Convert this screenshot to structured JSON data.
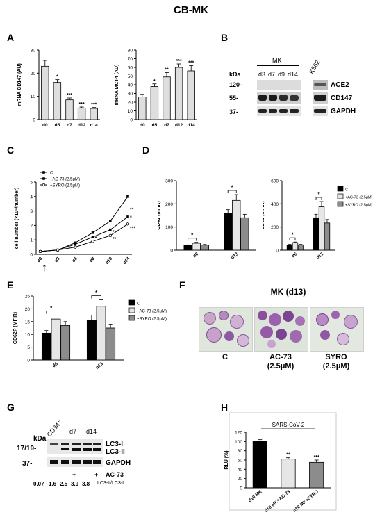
{
  "figure": {
    "title": "CB-MK"
  },
  "panels": {
    "A": "A",
    "B": "B",
    "C": "C",
    "D": "D",
    "E": "E",
    "F": "F",
    "G": "G",
    "H": "H"
  },
  "chart_data": [
    {
      "id": "A1",
      "type": "bar",
      "ylabel": "mRNA CD147 (AU)",
      "categories": [
        "d0",
        "d5",
        "d7",
        "d12",
        "d14"
      ],
      "values": [
        23,
        16,
        8.5,
        5,
        4.8
      ],
      "errors": [
        2.5,
        1.2,
        0.8,
        0.4,
        0.4
      ],
      "annotations": [
        "",
        "*",
        "***",
        "***",
        "***"
      ],
      "ylim": [
        0,
        30
      ],
      "yticks": [
        0,
        10,
        20,
        30
      ]
    },
    {
      "id": "A2",
      "type": "bar",
      "ylabel": "mRNA MCT4 (AU)",
      "categories": [
        "d0",
        "d5",
        "d7",
        "d12",
        "d14"
      ],
      "values": [
        26,
        38,
        49,
        60,
        56
      ],
      "errors": [
        3,
        3,
        5,
        4,
        6
      ],
      "annotations": [
        "",
        "*",
        "**",
        "***",
        "***"
      ],
      "ylim": [
        0,
        80
      ],
      "yticks": [
        0,
        10,
        20,
        30,
        40,
        50,
        60,
        70,
        80
      ]
    },
    {
      "id": "C",
      "type": "line",
      "ylabel": "cell number (×10⁶/number)",
      "x": [
        "d0",
        "d3",
        "d6",
        "d8",
        "d10",
        "d14"
      ],
      "ylim": [
        0,
        5
      ],
      "yticks": [
        0,
        1,
        2,
        3,
        4,
        5
      ],
      "series": [
        {
          "name": "C",
          "values": [
            0.2,
            0.3,
            0.8,
            1.5,
            2.3,
            4.0
          ]
        },
        {
          "name": "+AC-73 (2.5μM)",
          "values": [
            0.2,
            0.3,
            0.7,
            1.2,
            1.7,
            2.6
          ]
        },
        {
          "name": "+SYRO (2.5μM)",
          "values": [
            0.2,
            0.3,
            0.5,
            0.9,
            1.3,
            2.1
          ]
        }
      ],
      "annotations": [
        {
          "x": "d8",
          "text": "*"
        },
        {
          "x": "d10",
          "text": "*"
        },
        {
          "x": "d10",
          "text": "**"
        },
        {
          "x": "d14",
          "text": "**"
        },
        {
          "x": "d14",
          "text": "*"
        },
        {
          "x": "d14",
          "text": "***"
        }
      ]
    },
    {
      "id": "D1",
      "type": "bar",
      "ylabel": "CD41 (MFIR)",
      "categories": [
        "d6",
        "d13"
      ],
      "series": [
        {
          "name": "C",
          "values": [
            20,
            160
          ],
          "errors": [
            3,
            15
          ]
        },
        {
          "name": "+AC-73 (2.5μM)",
          "values": [
            30,
            215
          ],
          "errors": [
            4,
            25
          ]
        },
        {
          "name": "+SYRO (2.5μM)",
          "values": [
            22,
            140
          ],
          "errors": [
            3,
            15
          ]
        }
      ],
      "annotations": [
        "*",
        "*"
      ],
      "ylim": [
        0,
        300
      ],
      "yticks": [
        0,
        100,
        200,
        300
      ]
    },
    {
      "id": "D2",
      "type": "bar",
      "ylabel": "CD61 (MFIR)",
      "categories": [
        "d6",
        "d13"
      ],
      "series": [
        {
          "name": "C",
          "values": [
            45,
            280
          ],
          "errors": [
            5,
            30
          ]
        },
        {
          "name": "+AC-73 (2.5μM)",
          "values": [
            65,
            375
          ],
          "errors": [
            6,
            45
          ]
        },
        {
          "name": "+SYRO (2.5μM)",
          "values": [
            45,
            235
          ],
          "errors": [
            5,
            30
          ]
        }
      ],
      "annotations": [
        "*",
        "*"
      ],
      "ylim": [
        0,
        600
      ],
      "yticks": [
        0,
        200,
        400,
        600
      ]
    },
    {
      "id": "E",
      "type": "bar",
      "ylabel": "CD62P (MFIR)",
      "categories": [
        "d6",
        "d13"
      ],
      "series": [
        {
          "name": "C",
          "values": [
            10.5,
            15.5
          ],
          "errors": [
            1,
            2
          ]
        },
        {
          "name": "+AC-73 (2.5μM)",
          "values": [
            16,
            21
          ],
          "errors": [
            1.5,
            2.5
          ]
        },
        {
          "name": "+SYRO (2.5μM)",
          "values": [
            13.5,
            12.5
          ],
          "errors": [
            1.5,
            1.5
          ]
        }
      ],
      "annotations": [
        "*",
        "*"
      ],
      "ylim": [
        0,
        25
      ],
      "yticks": [
        0,
        5,
        10,
        15,
        20,
        25
      ]
    },
    {
      "id": "H",
      "type": "bar",
      "title": "SARS-CoV-2",
      "ylabel": "RLU (%)",
      "categories": [
        "d10 MK",
        "d10 MK+AC-73",
        "d10 MK+SYRO"
      ],
      "values": [
        100,
        62,
        55
      ],
      "errors": [
        4,
        3,
        5
      ],
      "annotations": [
        "",
        "**",
        "***"
      ],
      "ylim": [
        0,
        120
      ],
      "yticks": [
        0,
        20,
        40,
        60,
        80,
        100,
        120
      ]
    }
  ],
  "panelB": {
    "group": "MK",
    "lanes": [
      "d3",
      "d7",
      "d9",
      "d14"
    ],
    "k562": "K562",
    "kda": "kDa",
    "markers": [
      "120-",
      "55-",
      "37-"
    ],
    "proteins": [
      "ACE2",
      "CD147",
      "GAPDH"
    ]
  },
  "panelF": {
    "header": "MK (d13)",
    "images": [
      {
        "label": "C"
      },
      {
        "label": "AC-73",
        "sub": "(2.5μM)"
      },
      {
        "label": "SYRO",
        "sub": "(2.5μM)"
      }
    ]
  },
  "panelG": {
    "kda": "kDa",
    "lanes": [
      "CD34⁺",
      "d7",
      "d14"
    ],
    "markers": [
      "17/19-",
      "37-"
    ],
    "proteins": [
      "LC3-I",
      "LC3-II",
      "GAPDH"
    ],
    "treatment": "AC-73",
    "signs": [
      "–",
      "–",
      "+",
      "–",
      "+"
    ],
    "ratios": [
      "0.07",
      "1.6",
      "2.5",
      "3.9",
      "3.8"
    ],
    "ratio_label": "LC3-II/LC3-I"
  },
  "panelC_arrow": "↑",
  "colors": {
    "black": "#000000",
    "light": "#e6e6e6",
    "gray": "#8c8c8c"
  }
}
